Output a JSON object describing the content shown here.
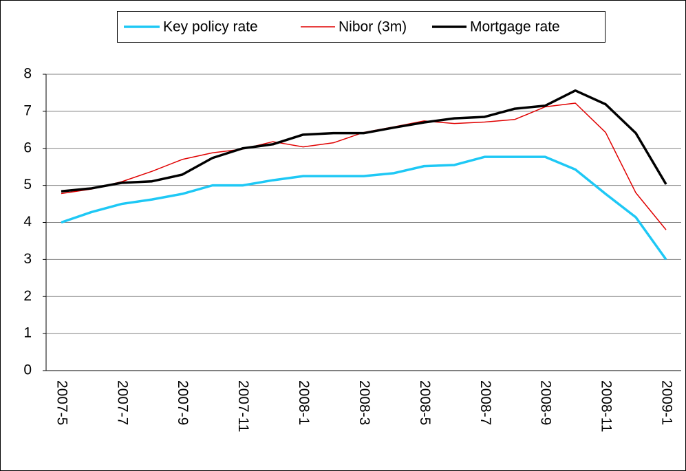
{
  "chart_data": {
    "type": "line",
    "categories": [
      "2007-5",
      null,
      "2007-7",
      null,
      "2007-9",
      null,
      "2007-11",
      null,
      "2008-1",
      null,
      "2008-3",
      null,
      "2008-5",
      null,
      "2008-7",
      null,
      "2008-9",
      null,
      "2008-11",
      null,
      "2009-1"
    ],
    "series": [
      {
        "name": "Key policy rate",
        "color": "#1ec8f5",
        "values": [
          4.0,
          4.28,
          4.5,
          4.62,
          4.77,
          5.0,
          5.0,
          5.14,
          5.25,
          5.25,
          5.25,
          5.33,
          5.52,
          5.55,
          5.77,
          5.77,
          5.77,
          5.43,
          4.77,
          4.14,
          3.0
        ]
      },
      {
        "name": "Nibor (3m)",
        "color": "#e00000",
        "values": [
          4.78,
          4.9,
          5.1,
          5.38,
          5.7,
          5.88,
          5.98,
          6.18,
          6.04,
          6.15,
          6.43,
          6.58,
          6.74,
          6.67,
          6.71,
          6.78,
          7.12,
          7.22,
          6.43,
          4.8,
          3.8
        ]
      },
      {
        "name": "Mortgage rate",
        "color": "#000000",
        "values": [
          4.84,
          4.92,
          5.07,
          5.11,
          5.29,
          5.74,
          6.0,
          6.11,
          6.37,
          6.41,
          6.41,
          6.56,
          6.7,
          6.81,
          6.85,
          7.07,
          7.15,
          7.56,
          7.19,
          6.41,
          5.03
        ]
      }
    ],
    "ylim": [
      0,
      8
    ],
    "yticks": [
      0,
      1,
      2,
      3,
      4,
      5,
      6,
      7,
      8
    ],
    "grid": true,
    "legend": "top"
  }
}
